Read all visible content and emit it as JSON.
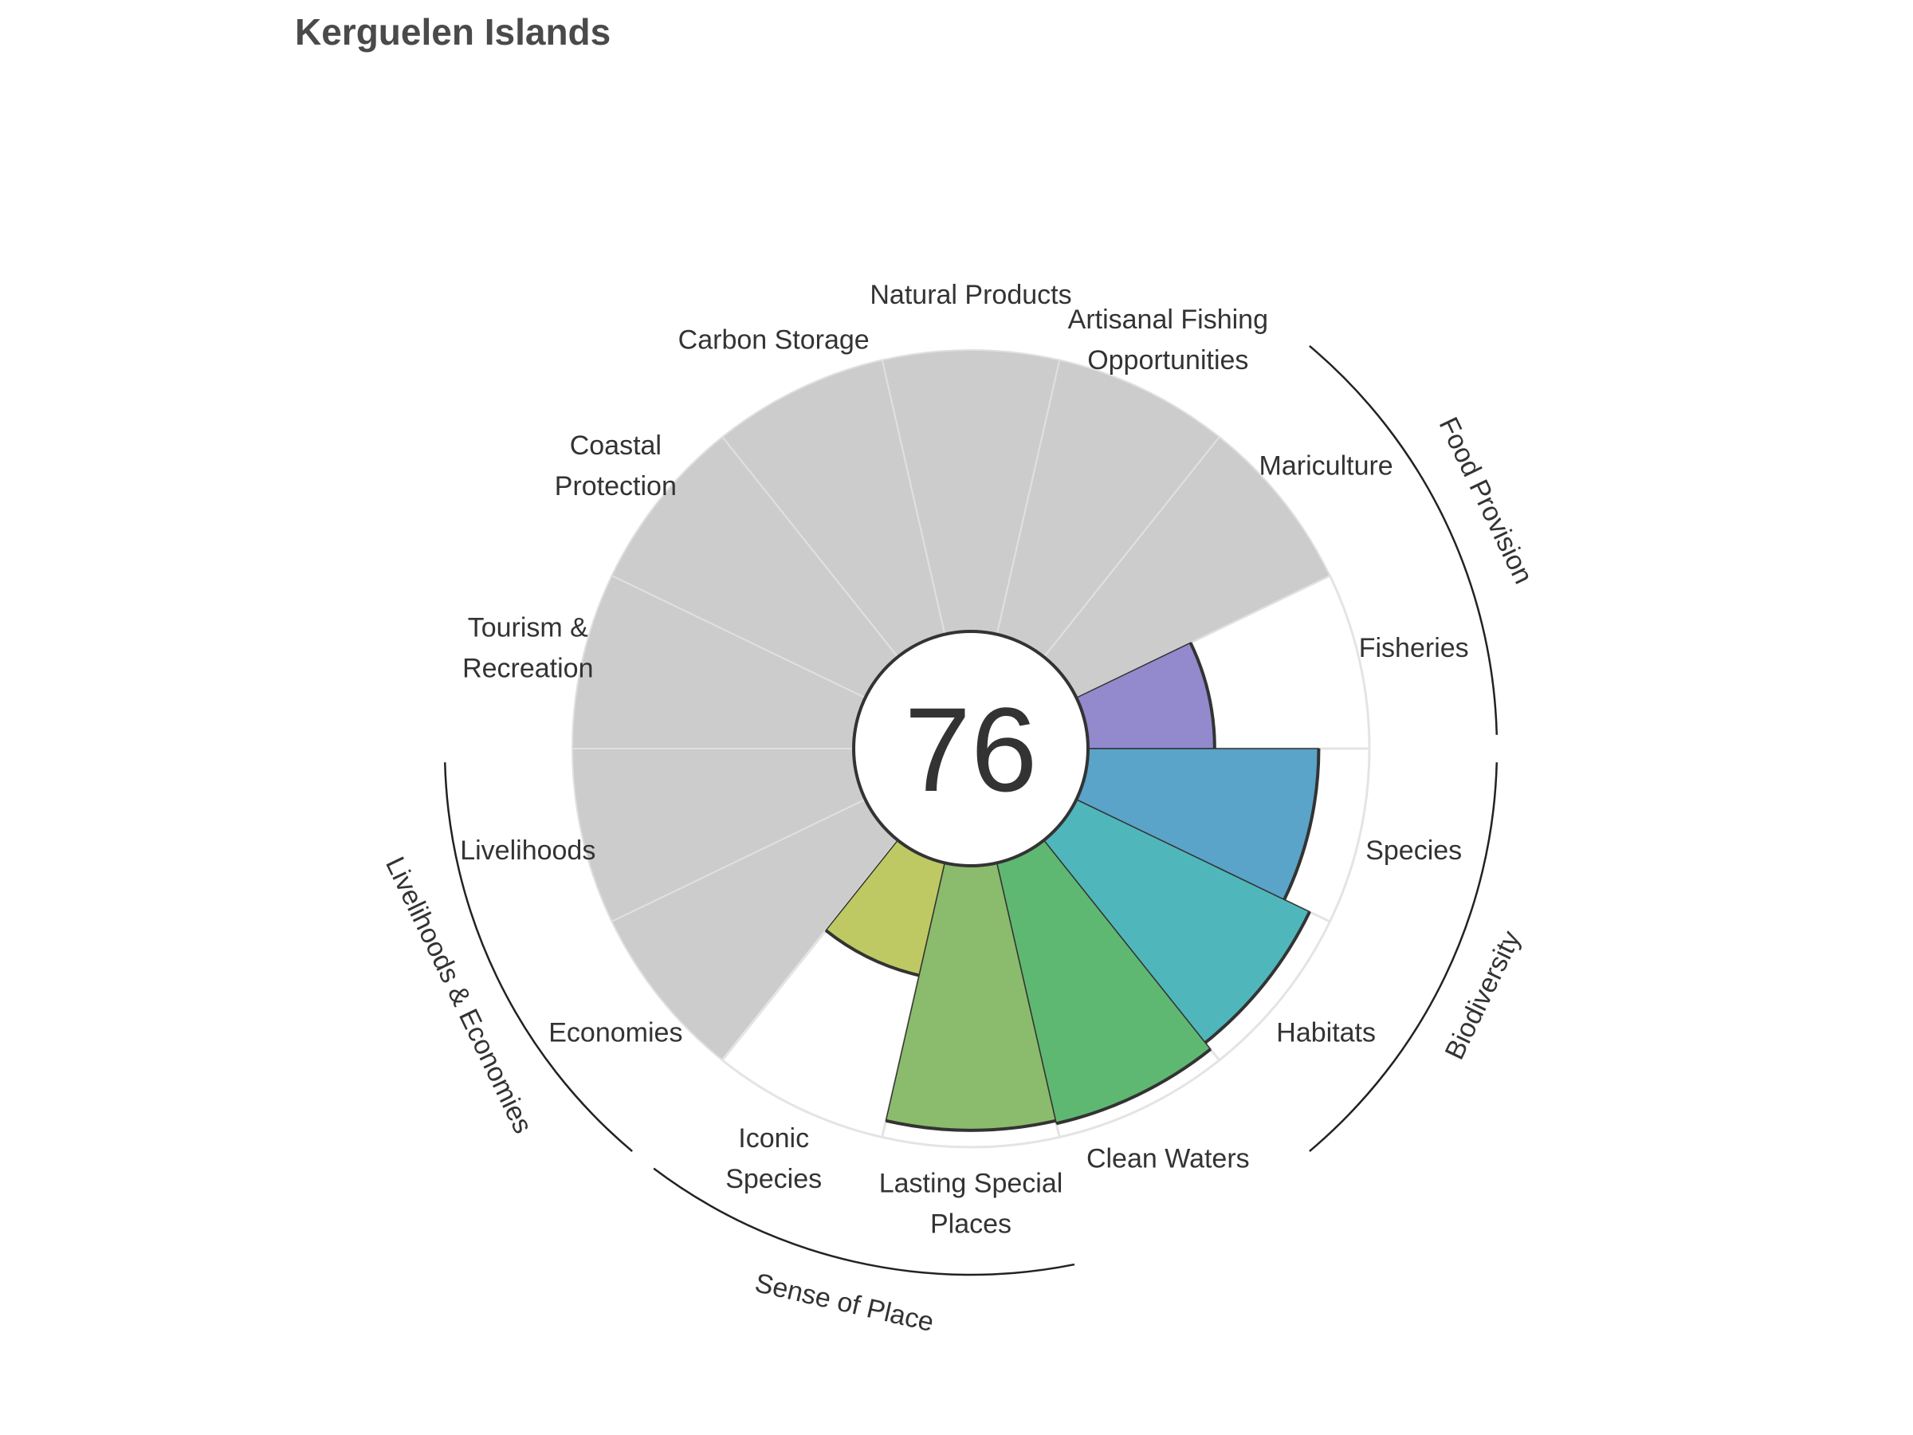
{
  "chart_data": {
    "type": "polar-bar",
    "title": "Kerguelen Islands",
    "score": "76",
    "rlim": [
      0,
      100
    ],
    "goals": [
      {
        "name": "Fisheries",
        "lines": [
          "Fisheries"
        ],
        "value": 45,
        "color": "#9389cd",
        "na": false
      },
      {
        "name": "Mariculture",
        "lines": [
          "Mariculture"
        ],
        "value": null,
        "color": "#cccccc",
        "na": true
      },
      {
        "name": "Artisanal Fishing Opportunities",
        "lines": [
          "Artisanal Fishing",
          "Opportunities"
        ],
        "value": null,
        "color": "#cccccc",
        "na": true
      },
      {
        "name": "Natural Products",
        "lines": [
          "Natural Products"
        ],
        "value": null,
        "color": "#cccccc",
        "na": true
      },
      {
        "name": "Carbon Storage",
        "lines": [
          "Carbon Storage"
        ],
        "value": null,
        "color": "#cccccc",
        "na": true
      },
      {
        "name": "Coastal Protection",
        "lines": [
          "Coastal",
          "Protection"
        ],
        "value": null,
        "color": "#cccccc",
        "na": true
      },
      {
        "name": "Tourism & Recreation",
        "lines": [
          "Tourism &",
          "Recreation"
        ],
        "value": null,
        "color": "#cccccc",
        "na": true
      },
      {
        "name": "Livelihoods",
        "lines": [
          "Livelihoods"
        ],
        "value": null,
        "color": "#cccccc",
        "na": true
      },
      {
        "name": "Economies",
        "lines": [
          "Economies"
        ],
        "value": null,
        "color": "#cccccc",
        "na": true
      },
      {
        "name": "Iconic Species",
        "lines": [
          "Iconic",
          "Species"
        ],
        "value": 41,
        "color": "#bfc963",
        "na": false
      },
      {
        "name": "Lasting Special Places",
        "lines": [
          "Lasting Special",
          "Places"
        ],
        "value": 94,
        "color": "#8bbb6c",
        "na": false
      },
      {
        "name": "Clean Waters",
        "lines": [
          "Clean Waters"
        ],
        "value": 95,
        "color": "#5fb872",
        "na": false
      },
      {
        "name": "Habitats",
        "lines": [
          "Habitats"
        ],
        "value": 92,
        "color": "#4fb7bb",
        "na": false
      },
      {
        "name": "Species",
        "lines": [
          "Species"
        ],
        "value": 82,
        "color": "#5aa3c9",
        "na": false
      }
    ],
    "groups": [
      {
        "name": "Food Provision",
        "goals": [
          "Fisheries",
          "Mariculture"
        ]
      },
      {
        "name": "Biodiversity",
        "goals": [
          "Habitats",
          "Species"
        ]
      },
      {
        "name": "Sense of Place",
        "goals": [
          "Iconic Species",
          "Lasting Special Places"
        ]
      },
      {
        "name": "Livelihoods & Economies",
        "goals": [
          "Livelihoods",
          "Economies"
        ]
      }
    ]
  }
}
